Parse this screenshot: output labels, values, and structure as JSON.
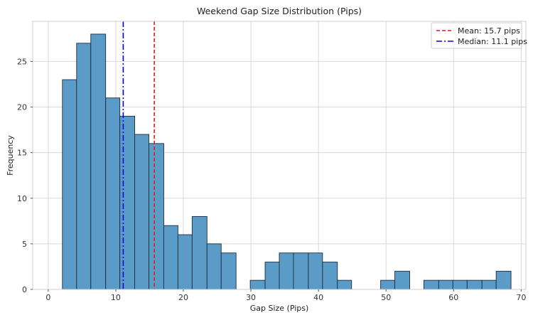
{
  "chart_data": {
    "type": "bar",
    "title": "Weekend Gap Size Distribution (Pips)",
    "xlabel": "Gap Size (Pips)",
    "ylabel": "Frequency",
    "xlim": [
      -2.3,
      70.7
    ],
    "ylim": [
      0,
      29.4
    ],
    "xticks": [
      0,
      10,
      20,
      30,
      40,
      50,
      60,
      70
    ],
    "yticks": [
      0,
      5,
      10,
      15,
      20,
      25
    ],
    "grid": true,
    "bar_color": "#5b9bc8",
    "bar_edge_color": "#1f2d3a",
    "bins": [
      {
        "x0": 2.1,
        "x1": 4.2,
        "count": 23
      },
      {
        "x0": 4.2,
        "x1": 6.3,
        "count": 27
      },
      {
        "x0": 6.3,
        "x1": 8.5,
        "count": 28
      },
      {
        "x0": 8.5,
        "x1": 10.6,
        "count": 21
      },
      {
        "x0": 10.6,
        "x1": 12.8,
        "count": 19
      },
      {
        "x0": 12.8,
        "x1": 14.9,
        "count": 17
      },
      {
        "x0": 14.9,
        "x1": 17.1,
        "count": 16
      },
      {
        "x0": 17.1,
        "x1": 19.2,
        "count": 7
      },
      {
        "x0": 19.2,
        "x1": 21.3,
        "count": 6
      },
      {
        "x0": 21.3,
        "x1": 23.5,
        "count": 8
      },
      {
        "x0": 23.5,
        "x1": 25.6,
        "count": 5
      },
      {
        "x0": 25.6,
        "x1": 27.8,
        "count": 4
      },
      {
        "x0": 27.8,
        "x1": 29.9,
        "count": 0
      },
      {
        "x0": 29.9,
        "x1": 32.1,
        "count": 1
      },
      {
        "x0": 32.1,
        "x1": 34.2,
        "count": 3
      },
      {
        "x0": 34.2,
        "x1": 36.3,
        "count": 4
      },
      {
        "x0": 36.3,
        "x1": 38.5,
        "count": 4
      },
      {
        "x0": 38.5,
        "x1": 40.6,
        "count": 4
      },
      {
        "x0": 40.6,
        "x1": 42.8,
        "count": 3
      },
      {
        "x0": 42.8,
        "x1": 44.9,
        "count": 1
      },
      {
        "x0": 44.9,
        "x1": 47.0,
        "count": 0
      },
      {
        "x0": 47.0,
        "x1": 49.2,
        "count": 0
      },
      {
        "x0": 49.2,
        "x1": 51.3,
        "count": 1
      },
      {
        "x0": 51.3,
        "x1": 53.5,
        "count": 2
      },
      {
        "x0": 53.5,
        "x1": 55.6,
        "count": 0
      },
      {
        "x0": 55.6,
        "x1": 57.8,
        "count": 1
      },
      {
        "x0": 57.8,
        "x1": 59.9,
        "count": 1
      },
      {
        "x0": 59.9,
        "x1": 62.0,
        "count": 1
      },
      {
        "x0": 62.0,
        "x1": 64.2,
        "count": 1
      },
      {
        "x0": 64.2,
        "x1": 66.3,
        "count": 1
      },
      {
        "x0": 66.3,
        "x1": 68.5,
        "count": 2
      }
    ],
    "reference_lines": [
      {
        "label": "Mean: 15.7 pips",
        "value": 15.7,
        "color": "#e31a1c",
        "style": "dashed"
      },
      {
        "label": "Median: 11.1 pips",
        "value": 11.1,
        "color": "#0000ee",
        "style": "dashdot"
      }
    ],
    "legend_position": "top-right"
  }
}
